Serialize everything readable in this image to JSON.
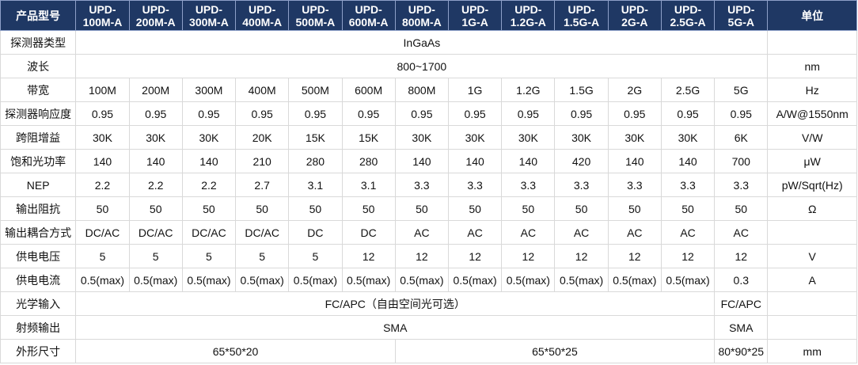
{
  "header": {
    "first_col": "产品型号",
    "unit_col": "单位",
    "models": [
      [
        "UPD-",
        "100M-A"
      ],
      [
        "UPD-",
        "200M-A"
      ],
      [
        "UPD-",
        "300M-A"
      ],
      [
        "UPD-",
        "400M-A"
      ],
      [
        "UPD-",
        "500M-A"
      ],
      [
        "UPD-",
        "600M-A"
      ],
      [
        "UPD-",
        "800M-A"
      ],
      [
        "UPD-",
        "1G-A"
      ],
      [
        "UPD-",
        "1.2G-A"
      ],
      [
        "UPD-",
        "1.5G-A"
      ],
      [
        "UPD-",
        "2G-A"
      ],
      [
        "UPD-",
        "2.5G-A"
      ],
      [
        "UPD-",
        "5G-A"
      ]
    ]
  },
  "rows": [
    {
      "label": "探测器类型",
      "unit": "",
      "cells": [
        {
          "text": "InGaAs",
          "span": 13
        }
      ]
    },
    {
      "label": "波长",
      "unit": "nm",
      "cells": [
        {
          "text": "800~1700",
          "span": 13
        }
      ]
    },
    {
      "label": "带宽",
      "unit": "Hz",
      "cells": [
        {
          "text": "100M"
        },
        {
          "text": "200M"
        },
        {
          "text": "300M"
        },
        {
          "text": "400M"
        },
        {
          "text": "500M"
        },
        {
          "text": "600M"
        },
        {
          "text": "800M"
        },
        {
          "text": "1G"
        },
        {
          "text": "1.2G"
        },
        {
          "text": "1.5G"
        },
        {
          "text": "2G"
        },
        {
          "text": "2.5G"
        },
        {
          "text": "5G"
        }
      ]
    },
    {
      "label": "探测器响应度",
      "unit": "A/W@1550nm",
      "cells": [
        {
          "text": "0.95"
        },
        {
          "text": "0.95"
        },
        {
          "text": "0.95"
        },
        {
          "text": "0.95"
        },
        {
          "text": "0.95"
        },
        {
          "text": "0.95"
        },
        {
          "text": "0.95"
        },
        {
          "text": "0.95"
        },
        {
          "text": "0.95"
        },
        {
          "text": "0.95"
        },
        {
          "text": "0.95"
        },
        {
          "text": "0.95"
        },
        {
          "text": "0.95"
        }
      ]
    },
    {
      "label": "跨阻增益",
      "unit": "V/W",
      "cells": [
        {
          "text": "30K"
        },
        {
          "text": "30K"
        },
        {
          "text": "30K"
        },
        {
          "text": "20K"
        },
        {
          "text": "15K"
        },
        {
          "text": "15K"
        },
        {
          "text": "30K"
        },
        {
          "text": "30K"
        },
        {
          "text": "30K"
        },
        {
          "text": "30K"
        },
        {
          "text": "30K"
        },
        {
          "text": "30K"
        },
        {
          "text": "6K"
        }
      ]
    },
    {
      "label": "饱和光功率",
      "unit": "μW",
      "cells": [
        {
          "text": "140"
        },
        {
          "text": "140"
        },
        {
          "text": "140"
        },
        {
          "text": "210"
        },
        {
          "text": "280"
        },
        {
          "text": "280"
        },
        {
          "text": "140"
        },
        {
          "text": "140"
        },
        {
          "text": "140"
        },
        {
          "text": "420"
        },
        {
          "text": "140"
        },
        {
          "text": "140"
        },
        {
          "text": "700"
        }
      ]
    },
    {
      "label": "NEP",
      "unit": "pW/Sqrt(Hz)",
      "cells": [
        {
          "text": "2.2"
        },
        {
          "text": "2.2"
        },
        {
          "text": "2.2"
        },
        {
          "text": "2.7"
        },
        {
          "text": "3.1"
        },
        {
          "text": "3.1"
        },
        {
          "text": "3.3"
        },
        {
          "text": "3.3"
        },
        {
          "text": "3.3"
        },
        {
          "text": "3.3"
        },
        {
          "text": "3.3"
        },
        {
          "text": "3.3"
        },
        {
          "text": "3.3"
        }
      ]
    },
    {
      "label": "输出阻抗",
      "unit": "Ω",
      "cells": [
        {
          "text": "50"
        },
        {
          "text": "50"
        },
        {
          "text": "50"
        },
        {
          "text": "50"
        },
        {
          "text": "50"
        },
        {
          "text": "50"
        },
        {
          "text": "50"
        },
        {
          "text": "50"
        },
        {
          "text": "50"
        },
        {
          "text": "50"
        },
        {
          "text": "50"
        },
        {
          "text": "50"
        },
        {
          "text": "50"
        }
      ]
    },
    {
      "label": "输出耦合方式",
      "unit": "",
      "cells": [
        {
          "text": "DC/AC"
        },
        {
          "text": "DC/AC"
        },
        {
          "text": "DC/AC"
        },
        {
          "text": "DC/AC"
        },
        {
          "text": "DC"
        },
        {
          "text": "DC"
        },
        {
          "text": "AC"
        },
        {
          "text": "AC"
        },
        {
          "text": "AC"
        },
        {
          "text": "AC"
        },
        {
          "text": "AC"
        },
        {
          "text": "AC"
        },
        {
          "text": "AC"
        }
      ]
    },
    {
      "label": "供电电压",
      "unit": "V",
      "cells": [
        {
          "text": "5"
        },
        {
          "text": "5"
        },
        {
          "text": "5"
        },
        {
          "text": "5"
        },
        {
          "text": "5"
        },
        {
          "text": "12"
        },
        {
          "text": "12"
        },
        {
          "text": "12"
        },
        {
          "text": "12"
        },
        {
          "text": "12"
        },
        {
          "text": "12"
        },
        {
          "text": "12"
        },
        {
          "text": "12"
        }
      ]
    },
    {
      "label": "供电电流",
      "unit": "A",
      "cells": [
        {
          "text": "0.5(max)"
        },
        {
          "text": "0.5(max)"
        },
        {
          "text": "0.5(max)"
        },
        {
          "text": "0.5(max)"
        },
        {
          "text": "0.5(max)"
        },
        {
          "text": "0.5(max)"
        },
        {
          "text": "0.5(max)"
        },
        {
          "text": "0.5(max)"
        },
        {
          "text": "0.5(max)"
        },
        {
          "text": "0.5(max)"
        },
        {
          "text": "0.5(max)"
        },
        {
          "text": "0.5(max)"
        },
        {
          "text": "0.3"
        }
      ]
    },
    {
      "label": "光学输入",
      "unit": "",
      "cells": [
        {
          "text": "FC/APC（自由空间光可选）",
          "span": 12
        },
        {
          "text": "FC/APC"
        }
      ]
    },
    {
      "label": "射频输出",
      "unit": "",
      "cells": [
        {
          "text": "SMA",
          "span": 12
        },
        {
          "text": "SMA"
        }
      ]
    },
    {
      "label": "外形尺寸",
      "unit": "mm",
      "cells": [
        {
          "text": "65*50*20",
          "span": 6
        },
        {
          "text": "65*50*25",
          "span": 6
        },
        {
          "text": "80*90*25"
        }
      ]
    }
  ]
}
